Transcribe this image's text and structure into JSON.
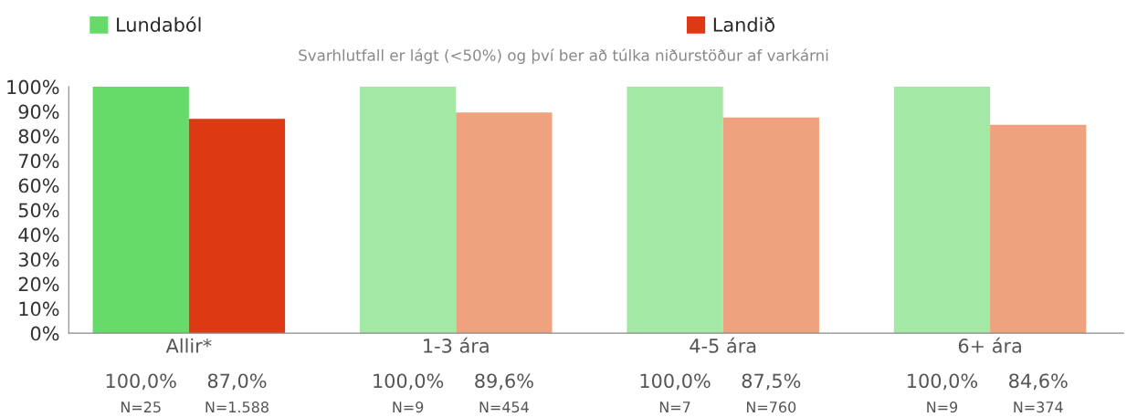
{
  "chart_data": {
    "type": "bar",
    "subtitle": "Svarhlutfall er lágt (<50%) og því ber að túlka niðurstöður af varkárni",
    "categories": [
      "Allir*",
      "1-3 ára",
      "4-5 ára",
      "6+ ára"
    ],
    "series": [
      {
        "name": "Lundaból",
        "color": "#66db6a",
        "colors": [
          "#66db6a",
          "#a3e8a5",
          "#a3e8a5",
          "#a3e8a5"
        ],
        "values": [
          100,
          100,
          100,
          100
        ],
        "value_labels": [
          "100,0%",
          "100,0%",
          "100,0%",
          "100,0%"
        ]
      },
      {
        "name": "Landið",
        "color": "#dd3a14",
        "colors": [
          "#dd3a14",
          "#eea37e",
          "#eea37e",
          "#eea37e"
        ],
        "values": [
          87.0,
          89.6,
          87.5,
          84.6
        ],
        "value_labels": [
          "87,0%",
          "89,6%",
          "87,5%",
          "84,6%"
        ]
      }
    ],
    "annotations": [
      "N=25",
      "N=1.588",
      "N=9",
      "N=454",
      "N=7",
      "N=760",
      "N=9",
      "N=374"
    ],
    "ylim": [
      0,
      100
    ],
    "yticks": [
      {
        "value": 0,
        "label": "0%"
      },
      {
        "value": 10,
        "label": "10%"
      },
      {
        "value": 20,
        "label": "20%"
      },
      {
        "value": 30,
        "label": "30%"
      },
      {
        "value": 40,
        "label": "40%"
      },
      {
        "value": 50,
        "label": "50%"
      },
      {
        "value": 60,
        "label": "60%"
      },
      {
        "value": 70,
        "label": "70%"
      },
      {
        "value": 80,
        "label": "80%"
      },
      {
        "value": 90,
        "label": "90%"
      },
      {
        "value": 100,
        "label": "100%"
      }
    ],
    "grid": false,
    "legend": "top"
  }
}
